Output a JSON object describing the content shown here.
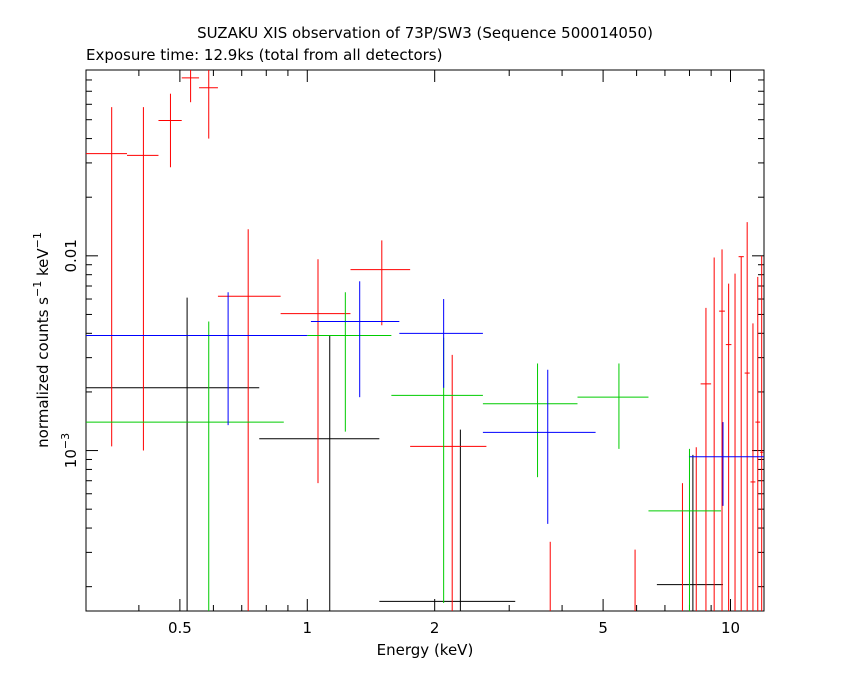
{
  "chart_data": {
    "type": "scatter",
    "title": "SUZAKU XIS observation of 73P/SW3 (Sequence 500014050)",
    "subtitle": "Exposure time: 12.9ks (total from all detectors)",
    "xlabel": "Energy (keV)",
    "ylabel": "normalized counts s",
    "ylabel_unit_1": "−1",
    "ylabel_mid": " keV",
    "ylabel_unit_2": "−1",
    "x_scale": "log",
    "y_scale": "log",
    "xlim": [
      0.3,
      12
    ],
    "ylim": [
      0.00015,
      0.09
    ],
    "x_ticks": [
      {
        "value": 0.5,
        "label": "0.5"
      },
      {
        "value": 1,
        "label": "1"
      },
      {
        "value": 2,
        "label": "2"
      },
      {
        "value": 5,
        "label": "5"
      },
      {
        "value": 10,
        "label": "10"
      }
    ],
    "y_ticks": [
      {
        "value": 0.001,
        "label": "10",
        "exp": "−3"
      },
      {
        "value": 0.01,
        "label": "0.01",
        "exp": ""
      }
    ],
    "grid": false,
    "legend": "none",
    "series": [
      {
        "color": "#000000",
        "points": [
          {
            "x": 0.52,
            "xlo": 0.3,
            "xhi": 0.77,
            "y": 0.0021,
            "ylo": 0.00015,
            "yhi": 0.0061
          },
          {
            "x": 1.13,
            "xlo": 0.77,
            "xhi": 1.48,
            "y": 0.00115,
            "ylo": 0.00015,
            "yhi": 0.0039
          },
          {
            "x": 2.3,
            "xlo": 1.48,
            "xhi": 3.1,
            "y": 0.000168,
            "ylo": 0.00015,
            "yhi": 0.00128
          },
          {
            "x": 8.15,
            "xlo": 6.7,
            "xhi": 9.6,
            "y": 0.000205,
            "ylo": 0.00015,
            "yhi": 0.00095
          }
        ]
      },
      {
        "color": "#ff0000",
        "points": [
          {
            "x": 0.345,
            "xlo": 0.3,
            "xhi": 0.375,
            "y": 0.0335,
            "ylo": 0.00105,
            "yhi": 0.058
          },
          {
            "x": 0.41,
            "xlo": 0.375,
            "xhi": 0.445,
            "y": 0.0328,
            "ylo": 0.001,
            "yhi": 0.058
          },
          {
            "x": 0.475,
            "xlo": 0.445,
            "xhi": 0.505,
            "y": 0.0495,
            "ylo": 0.0285,
            "yhi": 0.068
          },
          {
            "x": 0.53,
            "xlo": 0.505,
            "xhi": 0.555,
            "y": 0.082,
            "ylo": 0.0615,
            "yhi": 0.092
          },
          {
            "x": 0.585,
            "xlo": 0.555,
            "xhi": 0.615,
            "y": 0.073,
            "ylo": 0.04,
            "yhi": 0.09
          },
          {
            "x": 0.725,
            "xlo": 0.615,
            "xhi": 0.865,
            "y": 0.0062,
            "ylo": 0.00015,
            "yhi": 0.0137
          },
          {
            "x": 1.06,
            "xlo": 0.865,
            "xhi": 1.265,
            "y": 0.00505,
            "ylo": 0.00068,
            "yhi": 0.0096
          },
          {
            "x": 1.5,
            "xlo": 1.265,
            "xhi": 1.75,
            "y": 0.0085,
            "ylo": 0.0044,
            "yhi": 0.012
          },
          {
            "x": 2.2,
            "xlo": 1.75,
            "xhi": 2.65,
            "y": 0.00105,
            "ylo": 0.00015,
            "yhi": 0.0031
          },
          {
            "x": 3.75,
            "xlo": 3.75,
            "xhi": 3.75,
            "y": 0.00034,
            "ylo": 0.00015,
            "yhi": 0.00034
          },
          {
            "x": 5.95,
            "xlo": 5.95,
            "xhi": 5.95,
            "y": 0.00031,
            "ylo": 0.00015,
            "yhi": 0.00031
          },
          {
            "x": 7.7,
            "xlo": 7.7,
            "xhi": 7.7,
            "y": 0.00068,
            "ylo": 0.00015,
            "yhi": 0.00068
          },
          {
            "x": 8.3,
            "xlo": 8.3,
            "xhi": 8.3,
            "y": 0.00104,
            "ylo": 0.00015,
            "yhi": 0.00104
          },
          {
            "x": 8.75,
            "xlo": 8.5,
            "xhi": 9.0,
            "y": 0.0022,
            "ylo": 0.00015,
            "yhi": 0.0054
          },
          {
            "x": 9.15,
            "xlo": 9.15,
            "xhi": 9.15,
            "y": 0.0098,
            "ylo": 0.00015,
            "yhi": 0.0098
          },
          {
            "x": 9.55,
            "xlo": 9.4,
            "xhi": 9.7,
            "y": 0.0052,
            "ylo": 0.00015,
            "yhi": 0.0108
          },
          {
            "x": 9.9,
            "xlo": 9.75,
            "xhi": 10.05,
            "y": 0.0035,
            "ylo": 0.00015,
            "yhi": 0.0072
          },
          {
            "x": 10.25,
            "xlo": 10.25,
            "xhi": 10.25,
            "y": 0.0081,
            "ylo": 0.00015,
            "yhi": 0.0081
          },
          {
            "x": 10.6,
            "xlo": 10.45,
            "xhi": 10.75,
            "y": 0.0099,
            "ylo": 0.00015,
            "yhi": 0.0099
          },
          {
            "x": 10.95,
            "xlo": 10.8,
            "xhi": 11.1,
            "y": 0.0025,
            "ylo": 0.00015,
            "yhi": 0.0149
          },
          {
            "x": 11.3,
            "xlo": 11.15,
            "xhi": 11.45,
            "y": 0.00069,
            "ylo": 0.00015,
            "yhi": 0.0045
          },
          {
            "x": 11.6,
            "xlo": 11.45,
            "xhi": 11.75,
            "y": 0.0014,
            "ylo": 0.00015,
            "yhi": 0.0078
          },
          {
            "x": 11.85,
            "xlo": 11.75,
            "xhi": 11.95,
            "y": 0.00098,
            "ylo": 0.00015,
            "yhi": 0.01
          }
        ]
      },
      {
        "color": "#00cc00",
        "points": [
          {
            "x": 0.585,
            "xlo": 0.3,
            "xhi": 0.88,
            "y": 0.0014,
            "ylo": 0.00015,
            "yhi": 0.0046
          },
          {
            "x": 1.23,
            "xlo": 1.0,
            "xhi": 1.58,
            "y": 0.0039,
            "ylo": 0.00125,
            "yhi": 0.0065
          },
          {
            "x": 2.1,
            "xlo": 1.58,
            "xhi": 2.6,
            "y": 0.00192,
            "ylo": 0.000165,
            "yhi": 0.0038
          },
          {
            "x": 3.5,
            "xlo": 2.6,
            "xhi": 4.35,
            "y": 0.00174,
            "ylo": 0.00073,
            "yhi": 0.0028
          },
          {
            "x": 5.45,
            "xlo": 4.35,
            "xhi": 6.4,
            "y": 0.00188,
            "ylo": 0.00102,
            "yhi": 0.0028
          },
          {
            "x": 8.0,
            "xlo": 6.4,
            "xhi": 9.5,
            "y": 0.00049,
            "ylo": 0.00015,
            "yhi": 0.00102
          }
        ]
      },
      {
        "color": "#0000ff",
        "points": [
          {
            "x": 0.65,
            "xlo": 0.3,
            "xhi": 1.0,
            "y": 0.0039,
            "ylo": 0.00135,
            "yhi": 0.0065
          },
          {
            "x": 1.33,
            "xlo": 1.02,
            "xhi": 1.65,
            "y": 0.0046,
            "ylo": 0.00188,
            "yhi": 0.0074
          },
          {
            "x": 2.1,
            "xlo": 1.65,
            "xhi": 2.6,
            "y": 0.004,
            "ylo": 0.0021,
            "yhi": 0.006
          },
          {
            "x": 3.7,
            "xlo": 2.6,
            "xhi": 4.8,
            "y": 0.00124,
            "ylo": 0.00042,
            "yhi": 0.0026
          },
          {
            "x": 9.6,
            "xlo": 8.0,
            "xhi": 12.0,
            "y": 0.00093,
            "ylo": 0.00052,
            "yhi": 0.0014
          }
        ]
      }
    ]
  }
}
